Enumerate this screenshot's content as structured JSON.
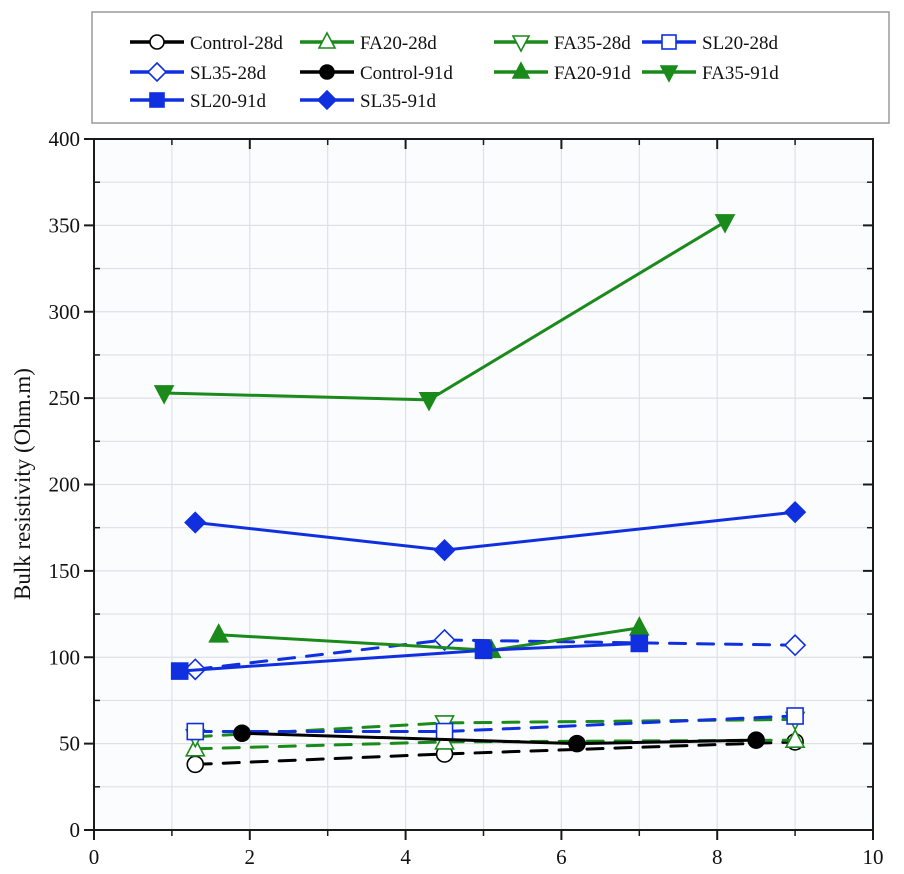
{
  "chart_data": {
    "type": "line",
    "title": "",
    "xlabel": "",
    "ylabel": "Bulk resistivity (Ohm.m)",
    "xlim": [
      0,
      10
    ],
    "ylim": [
      0,
      400
    ],
    "x_ticks": [
      "0",
      "2",
      "4",
      "6",
      "8",
      "10"
    ],
    "y_ticks": [
      "0",
      "50",
      "100",
      "150",
      "200",
      "250",
      "300",
      "350",
      "400"
    ],
    "grid": true,
    "legend_position": "top",
    "series": [
      {
        "name": "Control-28d",
        "color": "#000000",
        "marker": "circle",
        "filled": false,
        "dashed": true,
        "x": [
          1.3,
          4.5,
          9.0
        ],
        "y": [
          38,
          44,
          51
        ]
      },
      {
        "name": "FA20-28d",
        "color": "#1a8a1a",
        "marker": "triangle-up",
        "filled": false,
        "dashed": true,
        "x": [
          1.3,
          4.5,
          9.0
        ],
        "y": [
          47,
          51,
          52
        ]
      },
      {
        "name": "FA35-28d",
        "color": "#1a8a1a",
        "marker": "triangle-down",
        "filled": false,
        "dashed": true,
        "x": [
          1.3,
          4.5,
          9.0
        ],
        "y": [
          54,
          62,
          64
        ]
      },
      {
        "name": "SL20-28d",
        "color": "#1030e0",
        "marker": "square",
        "filled": false,
        "dashed": true,
        "x": [
          1.3,
          4.5,
          9.0
        ],
        "y": [
          57,
          57,
          66
        ]
      },
      {
        "name": "SL35-28d",
        "color": "#1030e0",
        "marker": "diamond",
        "filled": false,
        "dashed": true,
        "x": [
          1.3,
          4.5,
          9.0
        ],
        "y": [
          93,
          110,
          107
        ]
      },
      {
        "name": "Control-91d",
        "color": "#000000",
        "marker": "circle",
        "filled": true,
        "dashed": false,
        "x": [
          1.9,
          6.2,
          8.5
        ],
        "y": [
          56,
          50,
          52
        ]
      },
      {
        "name": "FA20-91d",
        "color": "#1a8a1a",
        "marker": "triangle-up",
        "filled": true,
        "dashed": false,
        "x": [
          1.6,
          5.1,
          7.0
        ],
        "y": [
          113,
          104,
          117
        ]
      },
      {
        "name": "FA35-91d",
        "color": "#1a8a1a",
        "marker": "triangle-down",
        "filled": true,
        "dashed": false,
        "x": [
          0.9,
          4.3,
          8.1
        ],
        "y": [
          253,
          249,
          352
        ]
      },
      {
        "name": "SL20-91d",
        "color": "#1030e0",
        "marker": "square",
        "filled": true,
        "dashed": false,
        "x": [
          1.1,
          5.0,
          7.0
        ],
        "y": [
          92,
          104,
          108
        ]
      },
      {
        "name": "SL35-91d",
        "color": "#1030e0",
        "marker": "diamond",
        "filled": true,
        "dashed": false,
        "x": [
          1.3,
          4.5,
          9.0
        ],
        "y": [
          178,
          162,
          184
        ]
      }
    ]
  }
}
